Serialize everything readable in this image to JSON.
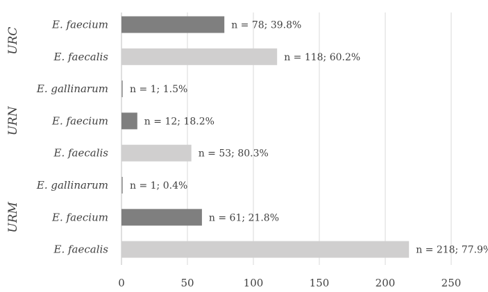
{
  "chart_data": {
    "type": "bar",
    "orientation": "horizontal",
    "title": "",
    "xlabel": "",
    "ylabel": "",
    "xlim": [
      0,
      250
    ],
    "x_ticks": [
      0,
      50,
      100,
      150,
      200,
      250
    ],
    "grid": "vertical",
    "groups": [
      {
        "name": "URC",
        "bars": [
          {
            "category": "E. faecium",
            "value": 78,
            "label": "n = 78; 39.8%",
            "color": "#7f7f7f"
          },
          {
            "category": "E. faecalis",
            "value": 118,
            "label": "n = 118; 60.2%",
            "color": "#d0cfcf"
          }
        ]
      },
      {
        "name": "URN",
        "bars": [
          {
            "category": "E. gallinarum",
            "value": 1,
            "label": "n = 1; 1.5%",
            "color": "#a6a6a6"
          },
          {
            "category": "E. faecium",
            "value": 12,
            "label": "n = 12; 18.2%",
            "color": "#7f7f7f"
          },
          {
            "category": "E. faecalis",
            "value": 53,
            "label": "n = 53; 80.3%",
            "color": "#d0cfcf"
          }
        ]
      },
      {
        "name": "URM",
        "bars": [
          {
            "category": "E. gallinarum",
            "value": 1,
            "label": "n = 1; 0.4%",
            "color": "#a6a6a6"
          },
          {
            "category": "E. faecium",
            "value": 61,
            "label": "n = 61; 21.8%",
            "color": "#7f7f7f"
          },
          {
            "category": "E. faecalis",
            "value": 218,
            "label": "n = 218; 77.9%",
            "color": "#d0cfcf"
          }
        ]
      }
    ],
    "colors": {
      "grid": "#d9d9d9",
      "axis": "#bfbfbf",
      "text": "#404040"
    }
  }
}
